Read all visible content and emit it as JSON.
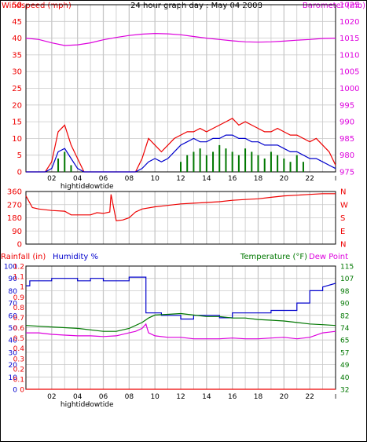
{
  "title": "24 hour graph day : May 04 2008",
  "colors": {
    "red": "#ee0000",
    "blue": "#0000cc",
    "green": "#007700",
    "magenta": "#dd00dd",
    "grid": "#c8c8c8",
    "axis": "#000000"
  },
  "chart_data": [
    {
      "id": "wind-baro",
      "type": "line",
      "labels": {
        "left": "Windspeed (mph)",
        "right": "Barometer (mb)"
      },
      "x_ticks": [
        "02",
        "04",
        "06",
        "08",
        "10",
        "12",
        "14",
        "16",
        "18",
        "20",
        "22"
      ],
      "tide_labels": [
        {
          "text": "hightide",
          "hour": 3.8
        },
        {
          "text": "lowtide",
          "hour": 5.8
        }
      ],
      "ylim_left": [
        0,
        50
      ],
      "yticks_left": [
        0,
        5,
        10,
        15,
        20,
        25,
        30,
        35,
        40,
        45,
        50
      ],
      "ylim_right": [
        975,
        1025
      ],
      "yticks_right": [
        975,
        980,
        985,
        990,
        995,
        1000,
        1005,
        1010,
        1015,
        1020,
        1025
      ],
      "series": [
        {
          "role": "barometer",
          "axis": "right",
          "color": "magenta",
          "x": [
            0,
            1,
            2,
            3,
            4,
            5,
            6,
            7,
            8,
            9,
            10,
            11,
            12,
            13,
            14,
            15,
            16,
            17,
            18,
            19,
            20,
            21,
            22,
            23,
            24
          ],
          "y": [
            1015.0,
            1014.6,
            1013.6,
            1012.8,
            1013.0,
            1013.6,
            1014.5,
            1015.2,
            1015.8,
            1016.2,
            1016.4,
            1016.3,
            1016.0,
            1015.5,
            1015.0,
            1014.6,
            1014.2,
            1013.9,
            1013.8,
            1013.9,
            1014.1,
            1014.4,
            1014.6,
            1014.9,
            1015.0
          ]
        },
        {
          "role": "wind-gust",
          "axis": "left",
          "color": "red",
          "x": [
            0,
            0.5,
            1,
            1.5,
            2,
            2.5,
            3,
            3.5,
            4,
            4.5,
            5,
            5.5,
            6,
            6.5,
            7,
            7.5,
            8,
            8.5,
            9,
            9.5,
            10,
            10.5,
            11,
            11.5,
            12,
            12.5,
            13,
            13.5,
            14,
            14.5,
            15,
            15.5,
            16,
            16.5,
            17,
            17.5,
            18,
            18.5,
            19,
            19.5,
            20,
            20.5,
            21,
            21.5,
            22,
            22.5,
            23,
            23.5,
            24
          ],
          "y": [
            0,
            0,
            0,
            0,
            3,
            12,
            14,
            8,
            4,
            0,
            0,
            0,
            0,
            0,
            0,
            0,
            0,
            0,
            4,
            10,
            8,
            6,
            8,
            10,
            11,
            12,
            12,
            13,
            12,
            13,
            14,
            15,
            16,
            14,
            15,
            14,
            13,
            12,
            12,
            13,
            12,
            11,
            11,
            10,
            9,
            10,
            8,
            6,
            2
          ]
        },
        {
          "role": "wind-average",
          "axis": "left",
          "color": "blue",
          "x": [
            0,
            0.5,
            1,
            1.5,
            2,
            2.5,
            3,
            3.5,
            4,
            4.5,
            5,
            5.5,
            6,
            6.5,
            7,
            7.5,
            8,
            8.5,
            9,
            9.5,
            10,
            10.5,
            11,
            11.5,
            12,
            12.5,
            13,
            13.5,
            14,
            14.5,
            15,
            15.5,
            16,
            16.5,
            17,
            17.5,
            18,
            18.5,
            19,
            19.5,
            20,
            20.5,
            21,
            21.5,
            22,
            22.5,
            23,
            23.5,
            24
          ],
          "y": [
            0,
            0,
            0,
            0,
            1,
            6,
            7,
            4,
            1,
            0,
            0,
            0,
            0,
            0,
            0,
            0,
            0,
            0,
            1,
            3,
            4,
            3,
            4,
            6,
            8,
            9,
            10,
            9,
            9,
            10,
            10,
            11,
            11,
            10,
            10,
            9,
            9,
            8,
            8,
            8,
            7,
            6,
            6,
            5,
            4,
            4,
            3,
            2,
            1
          ]
        },
        {
          "role": "wind-direction-bars",
          "axis": "left",
          "color": "green",
          "x": [
            2.5,
            3,
            3.5,
            12,
            12.5,
            13,
            13.5,
            14,
            14.5,
            15,
            15.5,
            16,
            16.5,
            17,
            17.5,
            18,
            18.5,
            19,
            19.5,
            20,
            20.5,
            21,
            21.5
          ],
          "y": [
            4,
            6,
            2,
            3,
            5,
            6,
            7,
            5,
            6,
            8,
            7,
            6,
            5,
            7,
            6,
            5,
            4,
            6,
            5,
            4,
            3,
            5,
            3
          ]
        }
      ]
    },
    {
      "id": "wind-direction",
      "type": "line",
      "yticks_left": [
        0,
        90,
        180,
        270,
        360
      ],
      "ylim_left": [
        0,
        360
      ],
      "compass_labels": [
        "N",
        "W",
        "S",
        "E",
        "N"
      ],
      "series": [
        {
          "role": "direction",
          "axis": "left",
          "color": "red",
          "x": [
            0,
            0.5,
            1,
            2,
            3,
            3.5,
            4,
            5,
            5.5,
            6,
            6.5,
            6.6,
            7,
            7.5,
            8,
            8.5,
            9,
            10,
            11,
            12,
            13,
            14,
            15,
            16,
            17,
            18,
            19,
            20,
            21,
            22,
            23,
            24
          ],
          "y": [
            330,
            250,
            240,
            230,
            225,
            200,
            200,
            200,
            215,
            210,
            220,
            340,
            160,
            165,
            180,
            220,
            240,
            255,
            265,
            275,
            280,
            285,
            290,
            300,
            305,
            310,
            320,
            330,
            335,
            340,
            345,
            345
          ]
        }
      ]
    },
    {
      "id": "rain-humidity-temp",
      "type": "line",
      "labels": {
        "left_rain": "Rainfall (in)",
        "left_humidity": "Humidity %",
        "right_temp": "Temperature (°F)",
        "right_dew": "Dew Point"
      },
      "x_ticks": [
        "02",
        "04",
        "06",
        "08",
        "10",
        "12",
        "14",
        "16",
        "18",
        "20",
        "22"
      ],
      "tide_labels": [
        {
          "text": "hightide",
          "hour": 3.8
        },
        {
          "text": "lowtide",
          "hour": 5.8
        }
      ],
      "yticks_humidity": [
        0,
        10,
        20,
        30,
        40,
        50,
        60,
        70,
        80,
        90,
        100
      ],
      "yticks_rain": [
        "0",
        "0.1",
        "0.2",
        "0.3",
        "0.4",
        "0.5",
        "0.6",
        "0.7",
        "0.8",
        "0.9",
        "1",
        "1.1",
        "1.2"
      ],
      "ylim_humidity": [
        0,
        100
      ],
      "yticks_temp": [
        32,
        40,
        49,
        57,
        65,
        74,
        82,
        90,
        98,
        107,
        115
      ],
      "ylim_temp": [
        32,
        115
      ],
      "series": [
        {
          "role": "humidity",
          "axis": "humidity",
          "color": "blue",
          "x": [
            0,
            0.3,
            0.3,
            2,
            2,
            4,
            4,
            5,
            5,
            6,
            6,
            8,
            8,
            9.3,
            9.3,
            10.5,
            10.5,
            12,
            12,
            13,
            13,
            15,
            15,
            16,
            16,
            19,
            19,
            21,
            21,
            22,
            22,
            23,
            23,
            24
          ],
          "y": [
            84,
            84,
            88,
            88,
            90,
            90,
            88,
            88,
            90,
            90,
            88,
            88,
            91,
            91,
            62,
            62,
            60,
            60,
            57,
            57,
            60,
            60,
            58,
            58,
            62,
            62,
            64,
            64,
            70,
            70,
            80,
            80,
            83,
            86
          ]
        },
        {
          "role": "temperature",
          "axis": "temp",
          "color": "green",
          "x": [
            0,
            2,
            4,
            6,
            7,
            8,
            9,
            9.5,
            10,
            11,
            12,
            13,
            14,
            15,
            16,
            17,
            18,
            19,
            20,
            21,
            22,
            23,
            24
          ],
          "y": [
            75,
            74,
            73,
            71,
            71,
            73,
            77,
            80,
            82,
            82.5,
            83,
            82,
            81,
            81,
            80,
            80,
            79,
            78.5,
            78,
            77,
            76,
            75.5,
            75
          ]
        },
        {
          "role": "dew-point",
          "axis": "temp",
          "color": "magenta",
          "x": [
            0,
            1,
            2,
            3,
            4,
            5,
            6,
            7,
            8,
            8.5,
            9,
            9.3,
            9.5,
            10,
            11,
            12,
            13,
            14,
            15,
            16,
            17,
            18,
            19,
            20,
            21,
            22,
            23,
            23.5,
            24
          ],
          "y": [
            70,
            70,
            69,
            68.5,
            68,
            68,
            67.5,
            68,
            70,
            71,
            73,
            76,
            70,
            68,
            67,
            67,
            66,
            66,
            66,
            66.5,
            66,
            66,
            66.5,
            67,
            66,
            67,
            70,
            70.5,
            71
          ]
        },
        {
          "role": "rainfall",
          "axis": "rain",
          "color": "red",
          "x": [
            0,
            24
          ],
          "y": [
            0,
            0
          ]
        }
      ]
    }
  ]
}
